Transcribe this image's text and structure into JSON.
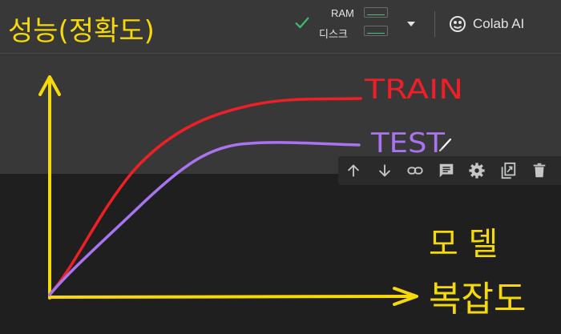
{
  "header": {
    "ram_label": "RAM",
    "disk_label": "디스크",
    "colab_ai_label": "Colab AI",
    "connected_icon": "check-icon",
    "dropdown_icon": "chevron-down-icon",
    "colab_icon": "colab-ai-icon"
  },
  "cell_toolbar": {
    "icons": [
      "arrow-up-icon",
      "arrow-down-icon",
      "link-icon",
      "comment-icon",
      "gear-icon",
      "mirror-cell-icon",
      "trash-icon"
    ]
  },
  "drawing": {
    "y_axis_label": "성능(정확도)",
    "x_axis_label_line1": "모 델",
    "x_axis_label_line2": "복잡도",
    "train_label": "TRAIN",
    "test_label": "TEST",
    "colors": {
      "axis": "#f5d90a",
      "train": "#ee1f26",
      "test": "#a874f0",
      "check": "#3dbb6a"
    }
  }
}
